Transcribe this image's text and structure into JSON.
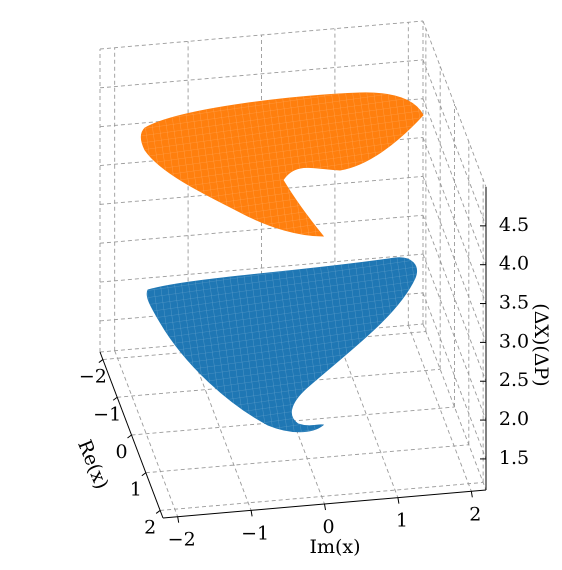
{
  "chart_data": {
    "type": "surface3d",
    "xlabel": "Re(x)",
    "ylabel": "Im(x)",
    "zlabel": "(ΔX)(ΔP)",
    "xlim": [
      -2.2,
      2.2
    ],
    "ylim": [
      -2.2,
      2.2
    ],
    "zlim": [
      1.1,
      5.0
    ],
    "xticks": [
      {
        "value": -2,
        "label": "−2"
      },
      {
        "value": -1,
        "label": "−1"
      },
      0,
      1,
      2
    ],
    "yticks": [
      {
        "value": -2,
        "label": "−2"
      },
      {
        "value": -1,
        "label": "−1"
      },
      0,
      1,
      2
    ],
    "zticks": [
      1.5,
      {
        "value": 2,
        "label": "2.0"
      },
      2.5,
      {
        "value": 3,
        "label": "3.0"
      },
      3.5,
      {
        "value": 4,
        "label": "4.0"
      },
      4.5
    ],
    "grid": true,
    "series": [
      {
        "color": "#1f77b4"
      },
      {
        "color": "#ff7f0e"
      }
    ]
  }
}
